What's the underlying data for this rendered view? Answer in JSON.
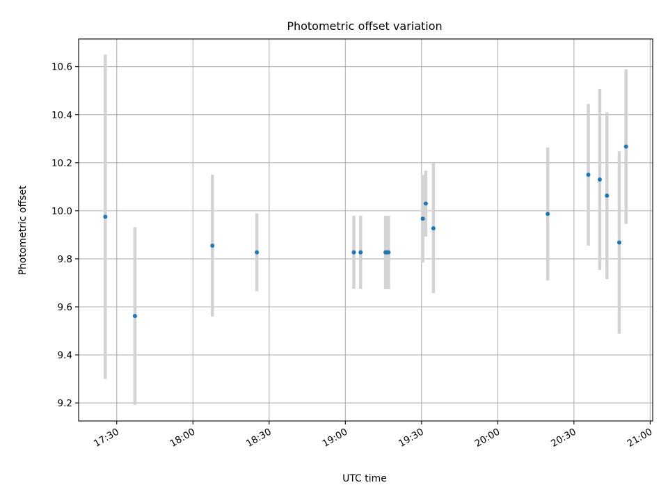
{
  "chart_data": {
    "type": "scatter",
    "title": "Photometric offset variation",
    "xlabel": "UTC time",
    "ylabel": "Photometric offset",
    "x_axis_type": "time",
    "xlim": [
      "17:15:00",
      "21:01:00"
    ],
    "ylim": [
      9.125,
      10.715
    ],
    "x_ticks": [
      "17:30",
      "18:00",
      "18:30",
      "19:00",
      "19:30",
      "20:00",
      "20:30",
      "21:00"
    ],
    "y_ticks": [
      9.2,
      9.4,
      9.6,
      9.8,
      10.0,
      10.2,
      10.4,
      10.6
    ],
    "y_tick_labels": [
      "9.2",
      "9.4",
      "9.6",
      "9.8",
      "10.0",
      "10.2",
      "10.4",
      "10.6"
    ],
    "grid": true,
    "marker_color": "#1f77b4",
    "errorbar_color": "#d3d3d3",
    "points": [
      {
        "t": "17:25:30",
        "y": 9.975,
        "err": 0.675
      },
      {
        "t": "17:37:10",
        "y": 9.562,
        "err": 0.37
      },
      {
        "t": "18:07:40",
        "y": 9.855,
        "err": 0.295
      },
      {
        "t": "18:25:10",
        "y": 9.827,
        "err": 0.162
      },
      {
        "t": "19:03:20",
        "y": 9.827,
        "err": 0.152
      },
      {
        "t": "19:06:00",
        "y": 9.827,
        "err": 0.152
      },
      {
        "t": "19:15:50",
        "y": 9.827,
        "err": 0.152
      },
      {
        "t": "19:16:30",
        "y": 9.827,
        "err": 0.152
      },
      {
        "t": "19:17:00",
        "y": 9.827,
        "err": 0.152
      },
      {
        "t": "19:30:30",
        "y": 9.967,
        "err": 0.182
      },
      {
        "t": "19:31:40",
        "y": 10.03,
        "err": 0.137
      },
      {
        "t": "19:34:40",
        "y": 9.927,
        "err": 0.27
      },
      {
        "t": "20:19:40",
        "y": 9.987,
        "err": 0.277
      },
      {
        "t": "20:35:40",
        "y": 10.15,
        "err": 0.295
      },
      {
        "t": "20:40:10",
        "y": 10.13,
        "err": 0.377
      },
      {
        "t": "20:43:00",
        "y": 10.063,
        "err": 0.347
      },
      {
        "t": "20:47:50",
        "y": 9.868,
        "err": 0.38
      },
      {
        "t": "20:50:30",
        "y": 10.267,
        "err": 0.322
      }
    ]
  }
}
